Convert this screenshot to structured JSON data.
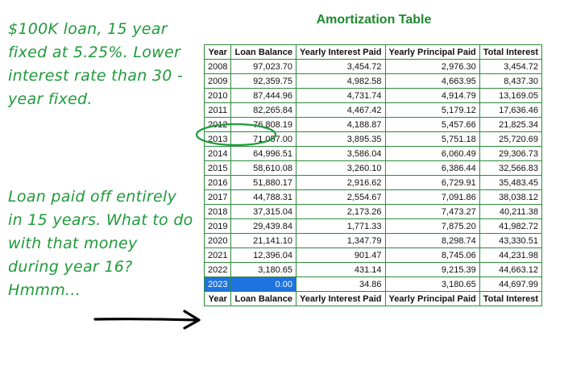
{
  "notes": {
    "top": "$100K loan, 15 year fixed at 5.25%. Lower interest rate than 30 -year fixed.",
    "bottom": "Loan paid off entirely in 15 years. What to do with that money during year 16? Hmmm..."
  },
  "table": {
    "title": "Amortization Table",
    "columns": [
      "Year",
      "Loan Balance",
      "Yearly Interest Paid",
      "Yearly Principal Paid",
      "Total Interest"
    ],
    "rows": [
      [
        "2008",
        "97,023.70",
        "3,454.72",
        "2,976.30",
        "3,454.72"
      ],
      [
        "2009",
        "92,359.75",
        "4,982.58",
        "4,663.95",
        "8,437.30"
      ],
      [
        "2010",
        "87,444.96",
        "4,731.74",
        "4,914.79",
        "13,169.05"
      ],
      [
        "2011",
        "82,265.84",
        "4,467.42",
        "5,179.12",
        "17,636.46"
      ],
      [
        "2012",
        "76,808.19",
        "4,188.87",
        "5,457.66",
        "21,825.34"
      ],
      [
        "2013",
        "71,057.00",
        "3,895.35",
        "5,751.18",
        "25,720.69"
      ],
      [
        "2014",
        "64,996.51",
        "3,586.04",
        "6,060.49",
        "29,306.73"
      ],
      [
        "2015",
        "58,610.08",
        "3,260.10",
        "6,386.44",
        "32,566.83"
      ],
      [
        "2016",
        "51,880.17",
        "2,916.62",
        "6,729.91",
        "35,483.45"
      ],
      [
        "2017",
        "44,788.31",
        "2,554.67",
        "7,091.86",
        "38,038.12"
      ],
      [
        "2018",
        "37,315.04",
        "2,173.26",
        "7,473.27",
        "40,211.38"
      ],
      [
        "2019",
        "29,439.84",
        "1,771.33",
        "7,875.20",
        "41,982.72"
      ],
      [
        "2020",
        "21,141.10",
        "1,347.79",
        "8,298.74",
        "43,330.51"
      ],
      [
        "2021",
        "12,396.04",
        "901.47",
        "8,745.06",
        "44,231.98"
      ],
      [
        "2022",
        "3,180.65",
        "431.14",
        "9,215.39",
        "44,663.12"
      ],
      [
        "2023",
        "0.00",
        "34.86",
        "3,180.65",
        "44,697.99"
      ]
    ],
    "circled_year": "2012",
    "selected_year": "2023"
  },
  "colors": {
    "annotation": "#1f9a3a",
    "table_border": "#2e8b3e",
    "selection": "#1e73e0",
    "arrow": "#000000"
  },
  "icons": [
    "hand-drawn-circle",
    "arrow-right-icon"
  ]
}
